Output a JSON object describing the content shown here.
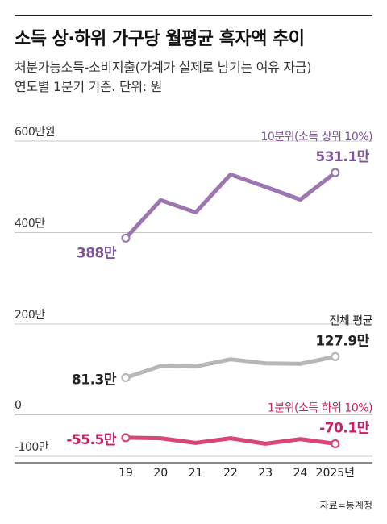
{
  "header": {
    "title": "소득 상·하위 가구당 월평균 흑자액 추이",
    "subtitle_line1": "처분가능소득-소비지출(가계가 실제로 남기는 여유 자금)",
    "subtitle_line2": "연도별 1분기 기준. 단위: 원"
  },
  "source": "자료=통계청",
  "chart_data": {
    "type": "line",
    "categories": [
      "19",
      "20",
      "21",
      "22",
      "23",
      "24",
      "2025년"
    ],
    "ylim": [
      -100,
      600
    ],
    "ytick_labels": [
      {
        "value": 600,
        "label": "600만원"
      },
      {
        "value": 400,
        "label": "400만"
      },
      {
        "value": 200,
        "label": "200만"
      },
      {
        "value": 0,
        "label": "0"
      },
      {
        "value": -100,
        "label": "-100만"
      }
    ],
    "series": [
      {
        "key": "top",
        "name": "10분위(소득 상위 10%)",
        "color": "#9b76b0",
        "values": [
          388,
          471,
          444,
          527,
          500,
          472,
          531.1
        ],
        "start_label": "388만",
        "end_label": "531.1만",
        "label_color": "#7b5596"
      },
      {
        "key": "avg",
        "name": "전체 평균",
        "color": "#b7b7b7",
        "values": [
          81.3,
          107,
          106,
          122,
          113,
          112,
          127.9
        ],
        "start_label": "81.3만",
        "end_label": "127.9만",
        "label_color": "#222222"
      },
      {
        "key": "bottom",
        "name": "1분위(소득 하위 10%)",
        "color": "#d9457b",
        "values": [
          -55.5,
          -57,
          -68,
          -57,
          -70,
          -59,
          -70.1
        ],
        "start_label": "-55.5만",
        "end_label": "-70.1만",
        "label_color": "#c81f66"
      }
    ],
    "grid": true,
    "legend": "inline labels"
  }
}
